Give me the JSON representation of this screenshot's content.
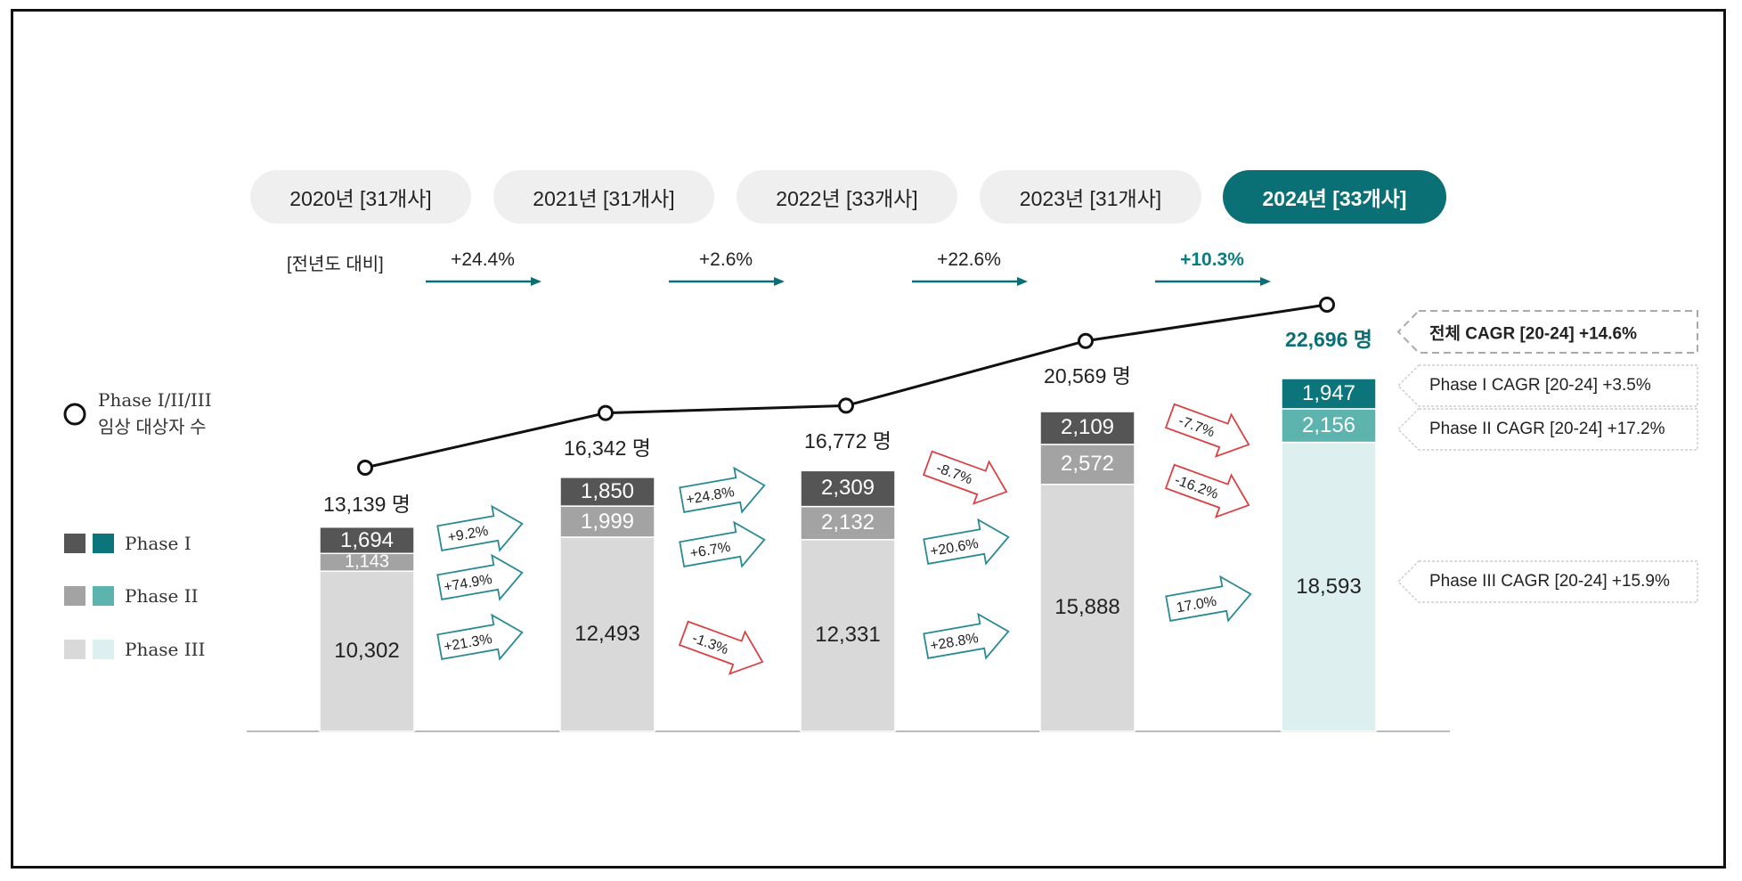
{
  "colors": {
    "teal": "#0b6f76",
    "phase1": "#555555",
    "phase2": "#a3a3a3",
    "phase3": "#d9d9d9",
    "phase1_hl": "#0c757c",
    "phase2_hl": "#5db3ad",
    "phase3_hl": "#ddefee",
    "up": "#2a8a93",
    "down": "#d84242"
  },
  "header": {
    "pills": [
      {
        "label": "2020년 [31개사]",
        "active": false
      },
      {
        "label": "2021년 [31개사]",
        "active": false
      },
      {
        "label": "2022년 [33개사]",
        "active": false
      },
      {
        "label": "2023년 [31개사]",
        "active": false
      },
      {
        "label": "2024년 [33개사]",
        "active": true
      }
    ],
    "yoy_label": "[전년도 대비]",
    "yoy": [
      "+24.4%",
      "+2.6%",
      "+22.6%",
      "+10.3%"
    ]
  },
  "legend": {
    "line_label_1": "Phase I/II/III",
    "line_label_2": "임상 대상자 수",
    "items": [
      "Phase I",
      "Phase II",
      "Phase III"
    ]
  },
  "chart_data": {
    "type": "bar",
    "stacked": true,
    "categories": [
      "2020",
      "2021",
      "2022",
      "2023",
      "2024"
    ],
    "series": [
      {
        "name": "Phase III",
        "values": [
          10302,
          12493,
          12331,
          15888,
          18593
        ]
      },
      {
        "name": "Phase II",
        "values": [
          1143,
          1999,
          2132,
          2572,
          2156
        ]
      },
      {
        "name": "Phase I",
        "values": [
          1694,
          1850,
          2309,
          2109,
          1947
        ]
      }
    ],
    "value_labels": {
      "Phase III": [
        "10,302",
        "12,493",
        "12,331",
        "15,888",
        "18,593"
      ],
      "Phase II": [
        "1,143",
        "1,999",
        "2,132",
        "2,572",
        "2,156"
      ],
      "Phase I": [
        "1,694",
        "1,850",
        "2,309",
        "2,109",
        "1,947"
      ]
    },
    "line": {
      "name": "Phase I/II/III 임상 대상자 수",
      "values": [
        13139,
        16342,
        16772,
        20569,
        22696
      ],
      "labels": [
        "13,139 명",
        "16,342 명",
        "16,772 명",
        "20,569 명",
        "22,696 명"
      ]
    },
    "growth": [
      {
        "phase1": "+9.2%",
        "phase2": "+74.9%",
        "phase3": "+21.3%"
      },
      {
        "phase1": "+24.8%",
        "phase2": "+6.7%",
        "phase3": "-1.3%"
      },
      {
        "phase1": "-8.7%",
        "phase2": "+20.6%",
        "phase3": "+28.8%"
      },
      {
        "phase1": "-7.7%",
        "phase2": "-16.2%",
        "phase3": "17.0%"
      }
    ],
    "cagr": [
      {
        "label": "전체 CAGR [20-24] +14.6%",
        "bold": true
      },
      {
        "label": "Phase I CAGR [20-24] +3.5%",
        "bold": false
      },
      {
        "label": "Phase II CAGR [20-24] +17.2%",
        "bold": false
      },
      {
        "label": "Phase III CAGR [20-24] +15.9%",
        "bold": false
      }
    ]
  }
}
